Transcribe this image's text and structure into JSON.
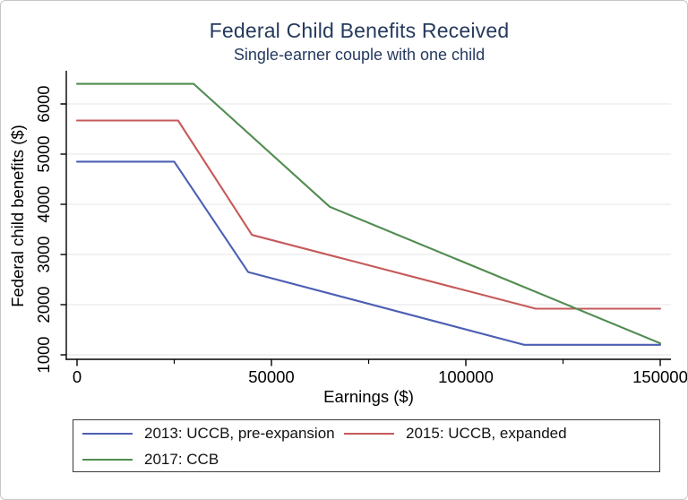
{
  "figure": {
    "border_color": "#c6c6c6",
    "background": "#ffffff"
  },
  "chart_data": {
    "type": "line",
    "title": "Federal Child Benefits Received",
    "subtitle": "Single-earner couple with one child",
    "xlabel": "Earnings ($)",
    "ylabel": "Federal child benefits ($)",
    "xlim": [
      0,
      150000
    ],
    "x_major_ticks": [
      0,
      50000,
      100000,
      150000
    ],
    "x_minor_ticks": [
      25000,
      75000,
      125000
    ],
    "y_ticks": [
      1000,
      2000,
      3000,
      4000,
      5000,
      6000
    ],
    "ylim": [
      1000,
      6450
    ],
    "grid": "horizontal gridlines on",
    "legend_position": "bottom box, two columns",
    "title_color": "#253a5e",
    "axis_color": "#000000",
    "grid_color": "#e9e9e9",
    "series": [
      {
        "name": "2013: UCCB, pre-expansion",
        "color": "#4d5fb3",
        "points": [
          [
            0,
            4850
          ],
          [
            25000,
            4850
          ],
          [
            44000,
            2650
          ],
          [
            115000,
            1200
          ],
          [
            150000,
            1200
          ]
        ]
      },
      {
        "name": "2015: UCCB, expanded",
        "color": "#c65a5a",
        "points": [
          [
            0,
            5670
          ],
          [
            26000,
            5670
          ],
          [
            45000,
            3390
          ],
          [
            118000,
            1920
          ],
          [
            150000,
            1920
          ]
        ]
      },
      {
        "name": "2017: CCB",
        "color": "#518c51",
        "points": [
          [
            0,
            6400
          ],
          [
            30000,
            6400
          ],
          [
            65000,
            3950
          ],
          [
            150000,
            1230
          ]
        ]
      }
    ]
  }
}
